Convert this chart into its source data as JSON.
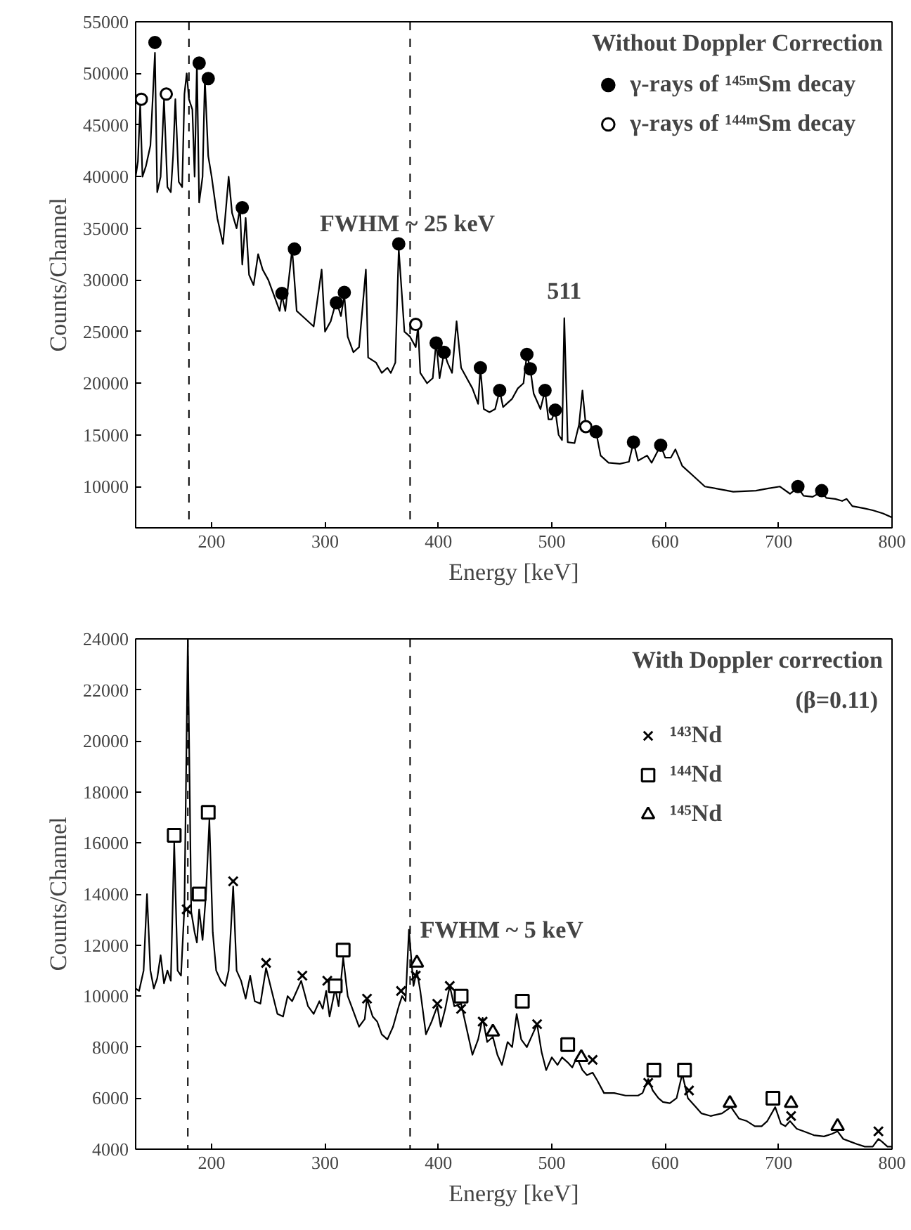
{
  "chart_data": [
    {
      "type": "line",
      "legend_title": "Without Doppler Correction",
      "xlabel": "Energy [keV]",
      "ylabel": "Counts/Channel",
      "xlim": [
        133,
        800
      ],
      "ylim": [
        6000,
        55000
      ],
      "xticks": [
        200,
        300,
        400,
        500,
        600,
        700,
        800
      ],
      "yticks": [
        10000,
        15000,
        20000,
        25000,
        30000,
        35000,
        40000,
        45000,
        50000,
        55000
      ],
      "legend": "top right",
      "annotations": [
        "FWHM ~ 25 keV",
        {
          "text": "511",
          "x": 511,
          "y": 26300
        }
      ],
      "ref_lines": [
        {
          "axis": "x",
          "value": 180,
          "line_style": "dashed"
        },
        {
          "axis": "x",
          "value": 375,
          "line_style": "dashed"
        }
      ],
      "series": [
        {
          "color": "#000000",
          "x": [
            133,
            135,
            137,
            139,
            142,
            146,
            150,
            152,
            155,
            158,
            161,
            164,
            166,
            168,
            171,
            174,
            176,
            178,
            180,
            183,
            185,
            187,
            189,
            192,
            194,
            197,
            200,
            205,
            210,
            215,
            218,
            222,
            225,
            227,
            230,
            233,
            237,
            241,
            245,
            250,
            255,
            260,
            262,
            265,
            271,
            275,
            280,
            290,
            297,
            300,
            305,
            310,
            314,
            317,
            320,
            325,
            330,
            336,
            338,
            345,
            350,
            355,
            358,
            362,
            365,
            370,
            375,
            380,
            382,
            384,
            390,
            395,
            398,
            401,
            405,
            408,
            412,
            416,
            420,
            425,
            430,
            435,
            437,
            440,
            445,
            450,
            454,
            457,
            465,
            470,
            475,
            478,
            481,
            484,
            490,
            494,
            497,
            500,
            503,
            506,
            509,
            511,
            514,
            520,
            524,
            527,
            530,
            535,
            539,
            543,
            550,
            560,
            568,
            572,
            576,
            584,
            588,
            596,
            600,
            605,
            609,
            615,
            625,
            635,
            645,
            660,
            680,
            690,
            701,
            710,
            717,
            722,
            730,
            738,
            742,
            750,
            756,
            760,
            765,
            775,
            783,
            792,
            800
          ],
          "values": [
            40000,
            41500,
            47000,
            40000,
            41000,
            43000,
            52000,
            38500,
            40000,
            47500,
            39000,
            38500,
            42000,
            47500,
            39500,
            39000,
            48000,
            50000,
            47500,
            46500,
            40000,
            51000,
            37500,
            40000,
            49500,
            42000,
            40000,
            36000,
            33500,
            40000,
            36500,
            35000,
            37000,
            31500,
            36000,
            30500,
            29500,
            32500,
            31000,
            30000,
            28500,
            27000,
            28500,
            27000,
            33000,
            27000,
            26500,
            25500,
            31000,
            25000,
            26000,
            28000,
            26500,
            28500,
            24500,
            23000,
            23500,
            31000,
            22500,
            22000,
            21000,
            21500,
            21000,
            22000,
            33000,
            25000,
            24500,
            23500,
            25500,
            21000,
            20000,
            20500,
            24000,
            20500,
            23000,
            22000,
            21000,
            26000,
            21500,
            20500,
            19500,
            18000,
            21500,
            17500,
            17200,
            17500,
            19300,
            17700,
            18500,
            19500,
            20000,
            22800,
            21400,
            19000,
            17500,
            19300,
            16500,
            16500,
            17400,
            15000,
            14500,
            26300,
            14300,
            14200,
            16000,
            19300,
            15900,
            15200,
            15300,
            13000,
            12300,
            12200,
            12400,
            14300,
            12500,
            13000,
            12300,
            14000,
            12800,
            12800,
            13600,
            12000,
            11000,
            10000,
            9800,
            9500,
            9600,
            9800,
            10000,
            9300,
            9900,
            9100,
            9000,
            9500,
            8900,
            8800,
            8600,
            8800,
            8100,
            7900,
            7700,
            7400,
            7000
          ]
        },
        {
          "type": "scatter",
          "marker": "circle",
          "name": "γ-rays of ¹⁴⁵ᵐSm decay",
          "color": "#000000",
          "x": [
            150,
            189,
            197,
            227,
            262,
            273,
            310,
            317,
            365,
            398,
            405,
            437,
            454,
            478,
            481,
            494,
            503,
            539,
            572,
            596,
            717,
            738
          ],
          "values": [
            53000,
            51000,
            49500,
            37000,
            28700,
            33000,
            27800,
            28800,
            33500,
            23900,
            23000,
            21500,
            19300,
            22800,
            21400,
            19300,
            17400,
            15300,
            14300,
            14000,
            10000,
            9600
          ]
        },
        {
          "type": "scatter",
          "marker": "circle",
          "name": "γ-rays of ¹⁴⁴ᵐSm decay",
          "color": "#ffffff",
          "x": [
            138,
            160,
            380,
            530
          ],
          "values": [
            47500,
            48000,
            25700,
            15800
          ]
        }
      ]
    },
    {
      "type": "line",
      "legend_title": "With Doppler correction",
      "xlabel": "Energy [keV]",
      "ylabel": "Counts/Channel",
      "xlim": [
        133,
        800
      ],
      "ylim": [
        4000,
        24000
      ],
      "xticks": [
        200,
        300,
        400,
        500,
        600,
        700,
        800
      ],
      "yticks": [
        4000,
        6000,
        8000,
        10000,
        12000,
        14000,
        16000,
        18000,
        20000,
        22000,
        24000
      ],
      "legend": "top right",
      "annotations": [
        "(β=0.11)",
        {
          "text": "FWHM ~  5 keV",
          "x": 374,
          "y": 12600
        }
      ],
      "ref_lines": [
        {
          "axis": "x",
          "value": 179,
          "line_style": "dashed"
        },
        {
          "axis": "x",
          "value": 375,
          "line_style": "dashed"
        }
      ],
      "series": [
        {
          "color": "#000000",
          "x": [
            133,
            136,
            140,
            143,
            146,
            149,
            152,
            155,
            158,
            161,
            164,
            167,
            170,
            173,
            176,
            179,
            182,
            185,
            187,
            189,
            192,
            195,
            198,
            201,
            204,
            208,
            212,
            215,
            219,
            222,
            226,
            230,
            234,
            238,
            243,
            248,
            253,
            258,
            263,
            267,
            271,
            275,
            279,
            285,
            290,
            295,
            298,
            301,
            304,
            309,
            312,
            316,
            320,
            325,
            330,
            335,
            337,
            342,
            346,
            350,
            355,
            360,
            365,
            368,
            371,
            374,
            378,
            381,
            384,
            389,
            394,
            399,
            402,
            406,
            410,
            414,
            420,
            425,
            430,
            435,
            439,
            443,
            448,
            452,
            456,
            461,
            465,
            469,
            473,
            478,
            483,
            487,
            491,
            495,
            500,
            505,
            509,
            514,
            518,
            522,
            527,
            531,
            536,
            540,
            546,
            555,
            565,
            576,
            580,
            585,
            589,
            594,
            598,
            604,
            610,
            615,
            620,
            626,
            632,
            640,
            650,
            658,
            665,
            672,
            679,
            685,
            690,
            697,
            702,
            706,
            710,
            716,
            722,
            731,
            740,
            747,
            752,
            757,
            763,
            769,
            776,
            783,
            788,
            791,
            796,
            800
          ],
          "values": [
            10300,
            10200,
            11000,
            14000,
            11000,
            10300,
            10700,
            11600,
            10500,
            11000,
            10600,
            16000,
            11000,
            10800,
            13500,
            24000,
            13300,
            12500,
            12100,
            13400,
            12200,
            14000,
            16900,
            12500,
            11000,
            10600,
            10400,
            11000,
            14300,
            11000,
            10600,
            9900,
            10800,
            9800,
            9700,
            11100,
            10200,
            9300,
            9200,
            10000,
            9800,
            10200,
            10600,
            9600,
            9300,
            9800,
            9500,
            10200,
            9200,
            10300,
            9600,
            11500,
            10000,
            9400,
            8800,
            9100,
            9900,
            9200,
            9000,
            8500,
            8300,
            8800,
            9600,
            10000,
            9800,
            12600,
            10400,
            11000,
            10200,
            8500,
            9000,
            9600,
            8800,
            9500,
            10400,
            9600,
            9700,
            8700,
            7700,
            8300,
            9150,
            8200,
            8400,
            7700,
            7300,
            8200,
            8000,
            9300,
            8300,
            8000,
            8500,
            8900,
            7800,
            7100,
            7600,
            7300,
            7600,
            7400,
            7200,
            7600,
            7100,
            6900,
            7000,
            6700,
            6200,
            6200,
            6100,
            6100,
            6200,
            6750,
            6300,
            6000,
            5850,
            5800,
            6000,
            6950,
            6000,
            5700,
            5400,
            5300,
            5400,
            5650,
            5200,
            5100,
            4900,
            4900,
            5100,
            5650,
            5000,
            4900,
            5100,
            4800,
            4700,
            4550,
            4500,
            4600,
            4700,
            4400,
            4300,
            4200,
            4100,
            4100,
            4400,
            4300,
            4100,
            4100
          ]
        },
        {
          "type": "scatter",
          "marker": "cross",
          "name": "¹⁴³Nd",
          "color": "#000000",
          "x": [
            178,
            219,
            248,
            280,
            302,
            337,
            367,
            380,
            399,
            410,
            420,
            439,
            487,
            536,
            585,
            621,
            711,
            788
          ],
          "values": [
            13400,
            14500,
            11300,
            10800,
            10600,
            9900,
            10200,
            10800,
            9700,
            10400,
            9500,
            9000,
            8900,
            7500,
            6600,
            6300,
            5300,
            4700
          ]
        },
        {
          "type": "scatter",
          "marker": "square",
          "name": "¹⁴⁴Nd",
          "color": "#ffffff",
          "x": [
            167,
            189,
            197,
            309,
            316,
            420,
            474,
            514,
            590,
            617,
            695
          ],
          "values": [
            16300,
            14000,
            17200,
            10400,
            11800,
            10000,
            9800,
            8100,
            7100,
            7100,
            6000
          ]
        },
        {
          "type": "scatter",
          "marker": "triangle",
          "name": "¹⁴⁵Nd",
          "color": "#ffffff",
          "x": [
            381,
            448,
            526,
            657,
            711,
            752
          ],
          "values": [
            11300,
            8600,
            7600,
            5800,
            5800,
            4900
          ]
        }
      ]
    }
  ]
}
